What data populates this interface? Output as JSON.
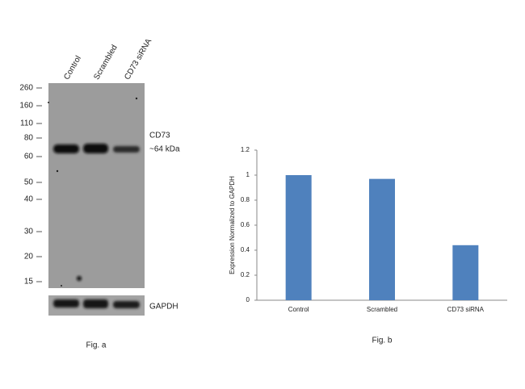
{
  "blot": {
    "lanes": [
      "Control",
      "Scrambled",
      "CD73 siRNA"
    ],
    "markers": [
      260,
      160,
      110,
      80,
      60,
      50,
      40,
      30,
      20,
      15
    ],
    "target": "CD73",
    "target_size": "~64 kDa",
    "loading_control": "GAPDH",
    "caption": "Fig. a"
  },
  "chart_data": {
    "type": "bar",
    "caption": "Fig. b",
    "y_label": "Expression Normalized to GAPDH",
    "categories": [
      "Control",
      "Scrambled",
      "CD73 siRNA"
    ],
    "values": [
      1,
      0.97,
      0.44
    ],
    "color": "#4f81bd",
    "ylim": [
      0,
      1.2
    ],
    "yticks": [
      0,
      0.2,
      0.4,
      0.6,
      0.8,
      1,
      1.2
    ],
    "grid": false
  }
}
